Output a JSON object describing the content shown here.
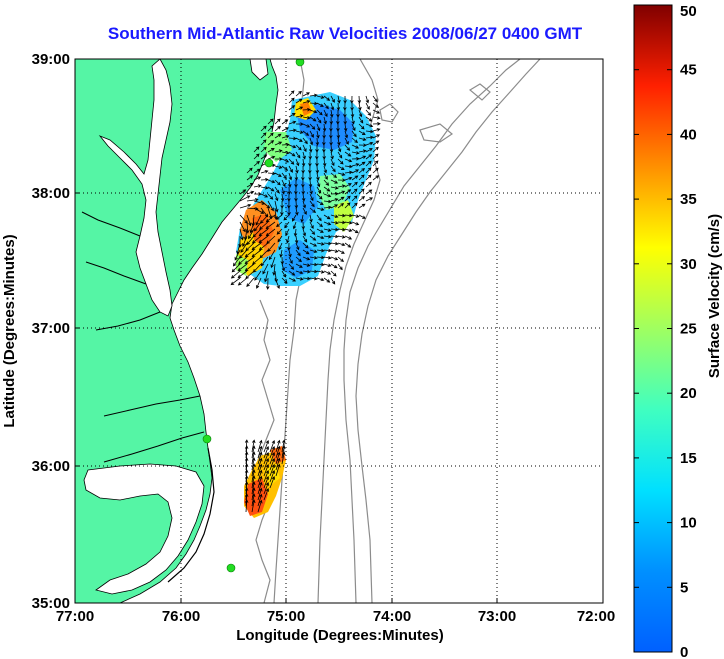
{
  "title": "Southern Mid-Atlantic Raw Velocities 2008/06/27 0400 GMT",
  "xlabel": "Longitude (Degrees:Minutes)",
  "ylabel": "Latitude (Degrees:Minutes)",
  "colorbar_label": "Surface Velocity (cm/s)",
  "x_ticks": [
    "77:00",
    "76:00",
    "75:00",
    "74:00",
    "73:00",
    "72:00"
  ],
  "y_ticks": [
    "39:00",
    "38:00",
    "37:00",
    "36:00",
    "35:00"
  ],
  "colorbar_ticks": [
    "50",
    "45",
    "40",
    "35",
    "30",
    "25",
    "20",
    "15",
    "10",
    "5",
    "0"
  ],
  "colors": {
    "land": "#55f5a5",
    "ocean": "#ffffff",
    "coastline": "#000000",
    "bathymetry": "#8c8c8c",
    "title": "#1a1aff",
    "station": "#22dd22"
  },
  "map": {
    "lon_range": [
      -77,
      -72
    ],
    "lat_range": [
      35,
      39
    ],
    "grid": true,
    "colormap": "jet",
    "velocity_range_cms": [
      0,
      50
    ]
  },
  "icons": {
    "station": "hf-radar-station-marker",
    "vector": "velocity-arrow"
  }
}
